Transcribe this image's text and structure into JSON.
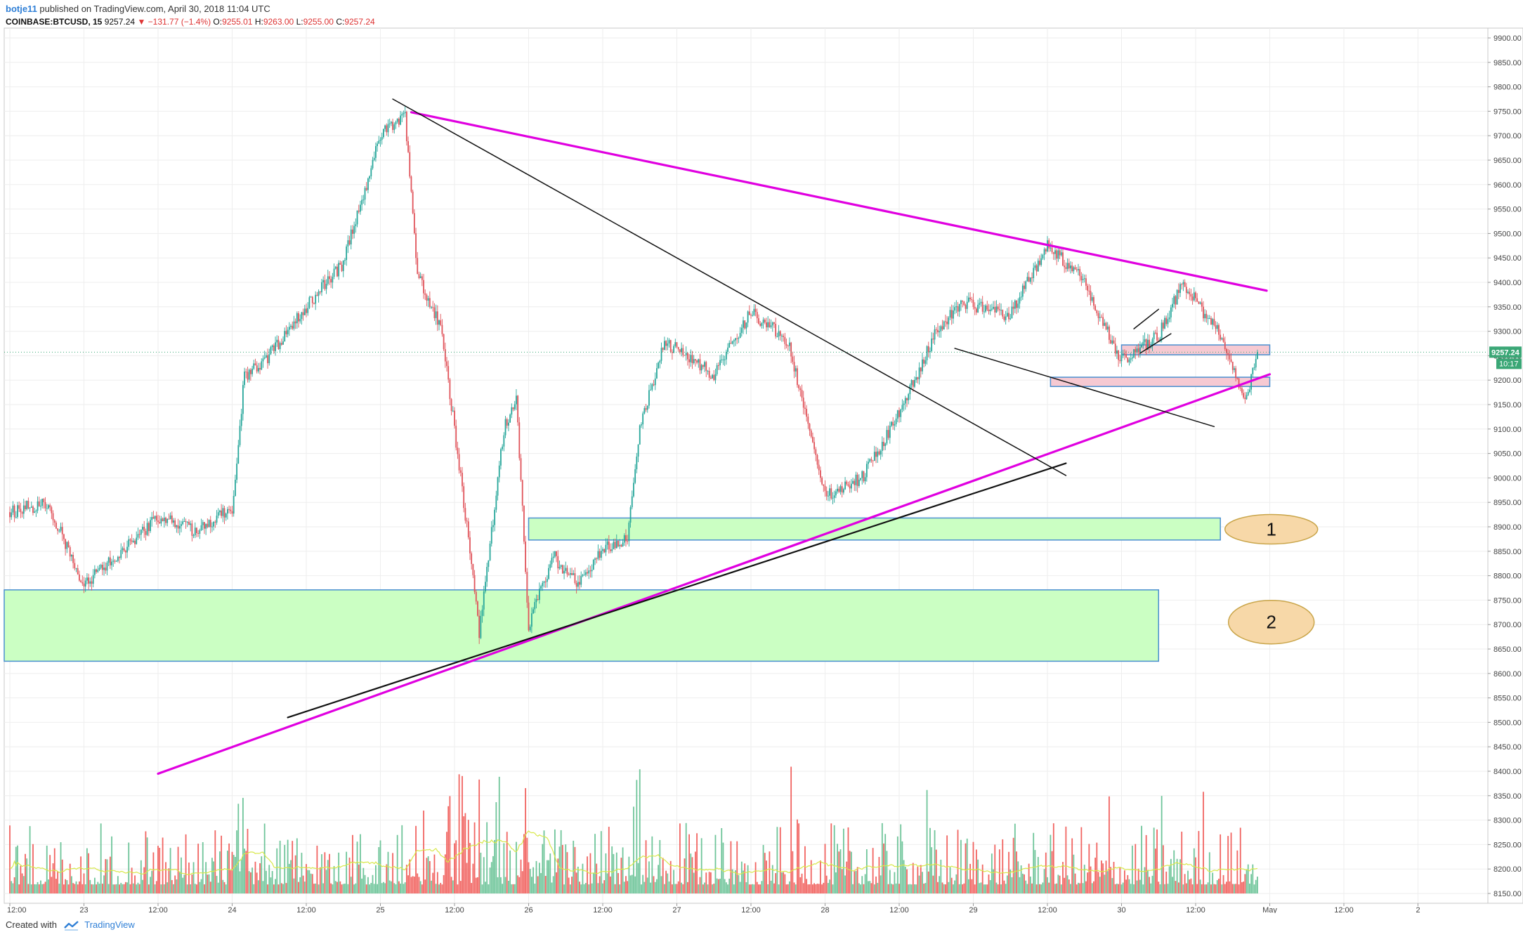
{
  "header": {
    "author": "botje11",
    "published": "published on TradingView.com, April 30, 2018 11:04 UTC",
    "symbol": "COINBASE:BTCUSD, 15",
    "last": "9257.24",
    "change": "−131.77 (−1.4%)",
    "o_label": "O:",
    "o": "9255.01",
    "h_label": "H:",
    "h": "9263.00",
    "l_label": "L:",
    "l": "9255.00",
    "c_label": "C:",
    "c": "9257.24"
  },
  "footer": {
    "created_with": "Created with",
    "brand": "TradingView"
  },
  "colors": {
    "up": "#26a69a",
    "up_vol": "#5fbf8f",
    "down": "#e0535a",
    "down_vol": "#ef5350",
    "magenta": "#e000e0",
    "black": "#111111",
    "green_zone": "#c8ffc0",
    "zone_border": "#4a8fd0",
    "pink_zone": "#f5c6d0",
    "label_fill": "#f7d8a8",
    "label_border": "#c9a54a",
    "price_badge": "#3aa776"
  },
  "chart_data": {
    "type": "candlestick",
    "symbol": "COINBASE:BTCUSD",
    "interval_minutes": 15,
    "y_ticks": [
      "9900.00",
      "9850.00",
      "9800.00",
      "9750.00",
      "9700.00",
      "9650.00",
      "9600.00",
      "9550.00",
      "9500.00",
      "9450.00",
      "9400.00",
      "9350.00",
      "9300.00",
      "9250.00",
      "9200.00",
      "9150.00",
      "9100.00",
      "9050.00",
      "9000.00",
      "8950.00",
      "8900.00",
      "8850.00",
      "8800.00",
      "8750.00",
      "8700.00",
      "8650.00",
      "8600.00",
      "8550.00",
      "8500.00",
      "8450.00",
      "8400.00",
      "8350.00",
      "8300.00",
      "8250.00",
      "8200.00",
      "8150.00"
    ],
    "x_ticks": [
      "12:00",
      "23",
      "12:00",
      "24",
      "12:00",
      "25",
      "12:00",
      "26",
      "12:00",
      "27",
      "12:00",
      "28",
      "12:00",
      "29",
      "12:00",
      "30",
      "12:00",
      "May",
      "12:00",
      "2"
    ],
    "current_price_label": "9257.24",
    "countdown_label": "10:17",
    "price_path": [
      [
        "2018-04-22 12:00",
        8930
      ],
      [
        "2018-04-22 18:00",
        8950
      ],
      [
        "2018-04-23 00:00",
        8780
      ],
      [
        "2018-04-23 06:00",
        8850
      ],
      [
        "2018-04-23 12:00",
        8920
      ],
      [
        "2018-04-23 18:00",
        8890
      ],
      [
        "2018-04-24 00:00",
        8940
      ],
      [
        "2018-04-24 02:00",
        9210
      ],
      [
        "2018-04-24 06:00",
        9250
      ],
      [
        "2018-04-24 12:00",
        9350
      ],
      [
        "2018-04-24 18:00",
        9440
      ],
      [
        "2018-04-25 00:00",
        9700
      ],
      [
        "2018-04-25 04:00",
        9740
      ],
      [
        "2018-04-25 06:00",
        9420
      ],
      [
        "2018-04-25 10:00",
        9300
      ],
      [
        "2018-04-25 14:00",
        8900
      ],
      [
        "2018-04-25 16:00",
        8680
      ],
      [
        "2018-04-25 20:00",
        9100
      ],
      [
        "2018-04-25 22:00",
        9170
      ],
      [
        "2018-04-26 00:00",
        8700
      ],
      [
        "2018-04-26 04:00",
        8840
      ],
      [
        "2018-04-26 08:00",
        8780
      ],
      [
        "2018-04-26 12:00",
        8860
      ],
      [
        "2018-04-26 16:00",
        8870
      ],
      [
        "2018-04-26 18:00",
        9100
      ],
      [
        "2018-04-26 22:00",
        9280
      ],
      [
        "2018-04-27 06:00",
        9210
      ],
      [
        "2018-04-27 12:00",
        9340
      ],
      [
        "2018-04-27 18:00",
        9280
      ],
      [
        "2018-04-28 00:00",
        8960
      ],
      [
        "2018-04-28 06:00",
        9000
      ],
      [
        "2018-04-28 12:00",
        9130
      ],
      [
        "2018-04-28 18:00",
        9300
      ],
      [
        "2018-04-28 22:00",
        9360
      ],
      [
        "2018-04-29 06:00",
        9330
      ],
      [
        "2018-04-29 12:00",
        9480
      ],
      [
        "2018-04-29 18:00",
        9400
      ],
      [
        "2018-04-30 00:00",
        9240
      ],
      [
        "2018-04-30 06:00",
        9290
      ],
      [
        "2018-04-30 10:00",
        9400
      ],
      [
        "2018-04-30 16:00",
        9290
      ],
      [
        "2018-04-30 20:00",
        9150
      ],
      [
        "2018-04-30 22:00",
        9257.24
      ]
    ],
    "annotations": {
      "zone_labels": [
        "1",
        "2"
      ]
    }
  }
}
